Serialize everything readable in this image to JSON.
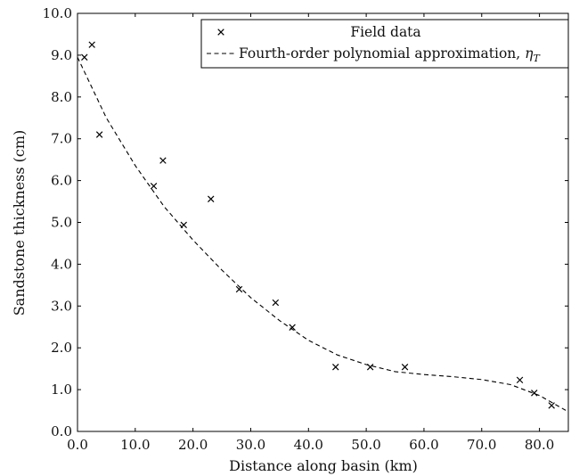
{
  "chart_data": {
    "type": "scatter",
    "xlabel": "Distance along basin (km)",
    "ylabel": "Sandstone thickness (cm)",
    "xlim": [
      0,
      85
    ],
    "ylim": [
      0,
      10
    ],
    "x_ticks": [
      0,
      10,
      20,
      30,
      40,
      50,
      60,
      70,
      80
    ],
    "y_ticks": [
      0,
      1,
      2,
      3,
      4,
      5,
      6,
      7,
      8,
      9,
      10
    ],
    "x_tick_labels": [
      "0.0",
      "10.0",
      "20.0",
      "30.0",
      "40.0",
      "50.0",
      "60.0",
      "70.0",
      "80.0"
    ],
    "y_tick_labels": [
      "0.0",
      "1.0",
      "2.0",
      "3.0",
      "4.0",
      "5.0",
      "6.0",
      "7.0",
      "8.0",
      "9.0",
      "10.0"
    ],
    "grid": false,
    "legend_position": "top-right",
    "series": [
      {
        "name": "Field data",
        "kind": "scatter",
        "marker": "x",
        "color": "#000000",
        "points": [
          [
            1.2,
            8.95
          ],
          [
            2.5,
            9.25
          ],
          [
            3.8,
            7.1
          ],
          [
            13.2,
            5.87
          ],
          [
            14.8,
            6.48
          ],
          [
            18.4,
            4.94
          ],
          [
            23.1,
            5.56
          ],
          [
            28.0,
            3.4
          ],
          [
            34.3,
            3.08
          ],
          [
            37.2,
            2.49
          ],
          [
            44.7,
            1.54
          ],
          [
            50.7,
            1.54
          ],
          [
            56.7,
            1.54
          ],
          [
            76.6,
            1.23
          ],
          [
            79.1,
            0.92
          ],
          [
            82.1,
            0.62
          ]
        ]
      },
      {
        "name_prefix": "Fourth-order polynomial approximation, ",
        "name_symbol": "η",
        "name_subscript": "T",
        "kind": "line",
        "style": "dashed",
        "color": "#000000",
        "points": [
          [
            0,
            8.95
          ],
          [
            5,
            7.5
          ],
          [
            10,
            6.36
          ],
          [
            15,
            5.38
          ],
          [
            20,
            4.58
          ],
          [
            25,
            3.86
          ],
          [
            30,
            3.2
          ],
          [
            35,
            2.65
          ],
          [
            40,
            2.18
          ],
          [
            45,
            1.83
          ],
          [
            50,
            1.6
          ],
          [
            55,
            1.43
          ],
          [
            60,
            1.36
          ],
          [
            65,
            1.31
          ],
          [
            70,
            1.24
          ],
          [
            75,
            1.12
          ],
          [
            80,
            0.86
          ],
          [
            85,
            0.47
          ]
        ]
      }
    ]
  }
}
